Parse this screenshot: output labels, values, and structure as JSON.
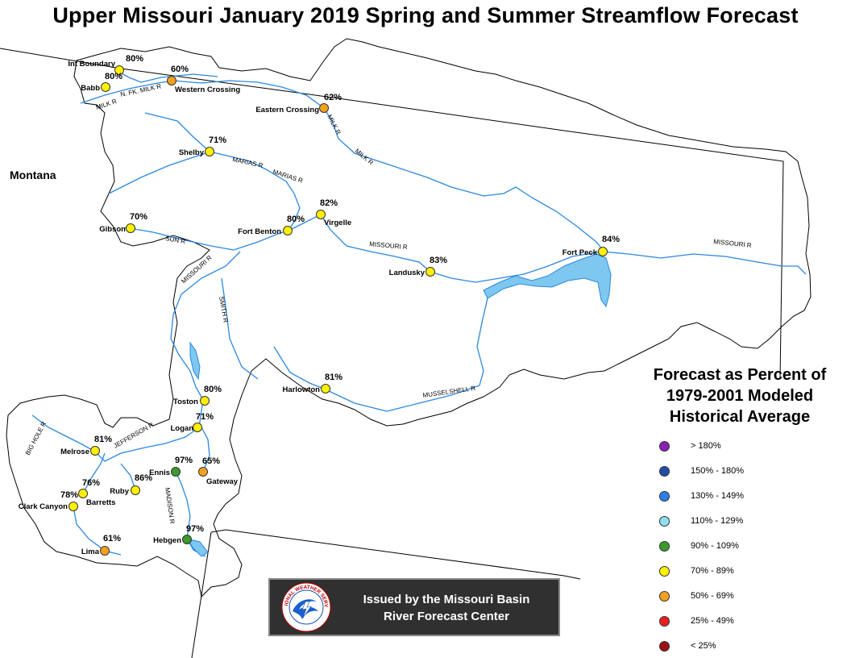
{
  "title": "Upper Missouri January 2019 Spring and Summer Streamflow Forecast",
  "state_label": "Montana",
  "legend": {
    "title_lines": [
      "Forecast as Percent of",
      "1979-2001 Modeled",
      "Historical Average"
    ],
    "items": [
      {
        "label": "> 180%",
        "color": "#8B1FB5"
      },
      {
        "label": "150% - 180%",
        "color": "#1F4FA8"
      },
      {
        "label": "130% - 149%",
        "color": "#2C7FE8"
      },
      {
        "label": "110% - 129%",
        "color": "#8FE0F0"
      },
      {
        "label": "90% - 109%",
        "color": "#3C9A2A"
      },
      {
        "label": "70% - 89%",
        "color": "#FFF000"
      },
      {
        "label": "50% - 69%",
        "color": "#F5A020"
      },
      {
        "label": "25% - 49%",
        "color": "#E82020"
      },
      {
        "label": "< 25%",
        "color": "#9A1010"
      }
    ]
  },
  "banner": {
    "line1": "Issued by the Missouri Basin",
    "line2": "River Forecast Center",
    "logo_text": "NATIONAL WEATHER SERVICE"
  },
  "sites": [
    {
      "name": "Int Boundary",
      "pct": "80%",
      "category": "70% - 89%"
    },
    {
      "name": "Babb",
      "pct": "80%",
      "category": "70% - 89%"
    },
    {
      "name": "Western Crossing",
      "pct": "60%",
      "category": "50% - 69%"
    },
    {
      "name": "Eastern Crossing",
      "pct": "62%",
      "category": "50% - 69%"
    },
    {
      "name": "Shelby",
      "pct": "71%",
      "category": "70% - 89%"
    },
    {
      "name": "Virgelle",
      "pct": "82%",
      "category": "70% - 89%"
    },
    {
      "name": "Fort Benton",
      "pct": "80%",
      "category": "70% - 89%"
    },
    {
      "name": "Gibson",
      "pct": "70%",
      "category": "70% - 89%"
    },
    {
      "name": "Fort Peck",
      "pct": "84%",
      "category": "70% - 89%"
    },
    {
      "name": "Landusky",
      "pct": "83%",
      "category": "70% - 89%"
    },
    {
      "name": "Harlowton",
      "pct": "81%",
      "category": "70% - 89%"
    },
    {
      "name": "Toston",
      "pct": "80%",
      "category": "70% - 89%"
    },
    {
      "name": "Logan",
      "pct": "71%",
      "category": "70% - 89%"
    },
    {
      "name": "Melrose",
      "pct": "81%",
      "category": "70% - 89%"
    },
    {
      "name": "Ennis",
      "pct": "97%",
      "category": "90% - 109%"
    },
    {
      "name": "Gateway",
      "pct": "65%",
      "category": "50% - 69%"
    },
    {
      "name": "Ruby",
      "pct": "86%",
      "category": "70% - 89%"
    },
    {
      "name": "Barretts",
      "pct": "76%",
      "category": "70% - 89%"
    },
    {
      "name": "Clark Canyon",
      "pct": "78%",
      "category": "70% - 89%"
    },
    {
      "name": "Hebgen",
      "pct": "97%",
      "category": "90% - 109%"
    },
    {
      "name": "Lima",
      "pct": "61%",
      "category": "50% - 69%"
    }
  ],
  "rivers": [
    "MILK R",
    "N. FK. MILK R",
    "MILK R",
    "MILK R",
    "MARIAS R",
    "MARIAS R",
    "SUN R",
    "MISSOURI R",
    "MISSOURI R",
    "MISSOURI R",
    "SMITH R",
    "MUSSELSHELL R",
    "JEFFERSON R",
    "BIG HOLE R",
    "MADISON R"
  ]
}
